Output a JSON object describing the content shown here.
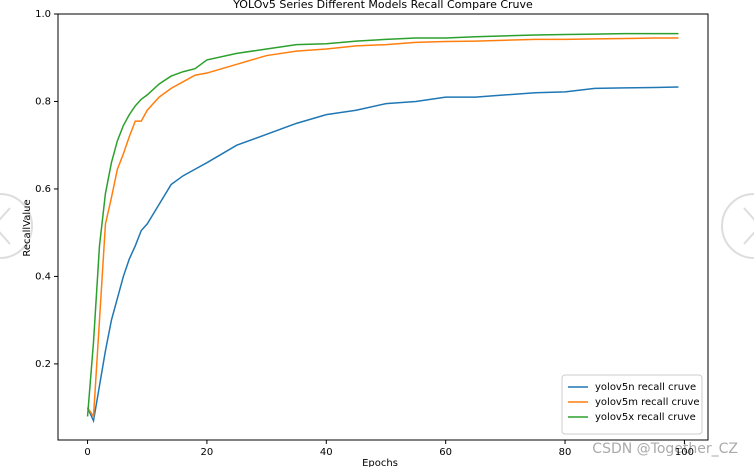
{
  "chart_data": {
    "type": "line",
    "title": "YOLOv5 Series Different Models Recall Compare Cruve",
    "x_label": "Epochs",
    "y_label": "RecallValue",
    "x": [
      0,
      1,
      2,
      3,
      4,
      5,
      6,
      7,
      8,
      9,
      10,
      12,
      14,
      16,
      18,
      20,
      25,
      30,
      35,
      40,
      45,
      50,
      55,
      60,
      65,
      70,
      75,
      80,
      85,
      90,
      95,
      99
    ],
    "series": [
      {
        "name": "yolov5n recall cruve",
        "color": "#1f77b4",
        "values": [
          0.1,
          0.07,
          0.15,
          0.23,
          0.3,
          0.35,
          0.4,
          0.44,
          0.47,
          0.505,
          0.52,
          0.565,
          0.61,
          0.63,
          0.645,
          0.66,
          0.7,
          0.725,
          0.75,
          0.77,
          0.78,
          0.795,
          0.8,
          0.81,
          0.81,
          0.815,
          0.82,
          0.822,
          0.83,
          0.831,
          0.832,
          0.833
        ]
      },
      {
        "name": "yolov5m recall cruve",
        "color": "#ff7f0e",
        "values": [
          0.1,
          0.08,
          0.3,
          0.52,
          0.58,
          0.645,
          0.68,
          0.72,
          0.755,
          0.755,
          0.78,
          0.81,
          0.83,
          0.845,
          0.86,
          0.865,
          0.885,
          0.905,
          0.915,
          0.92,
          0.927,
          0.93,
          0.935,
          0.937,
          0.938,
          0.94,
          0.942,
          0.942,
          0.943,
          0.944,
          0.945,
          0.945
        ]
      },
      {
        "name": "yolov5x recall cruve",
        "color": "#2ca02c",
        "values": [
          0.08,
          0.25,
          0.47,
          0.59,
          0.66,
          0.71,
          0.745,
          0.77,
          0.79,
          0.805,
          0.815,
          0.84,
          0.858,
          0.868,
          0.875,
          0.895,
          0.91,
          0.92,
          0.93,
          0.932,
          0.938,
          0.942,
          0.945,
          0.945,
          0.948,
          0.95,
          0.952,
          0.953,
          0.954,
          0.955,
          0.955,
          0.955
        ]
      }
    ],
    "xlim": [
      -4.95,
      103.95
    ],
    "ylim": [
      0.026,
      1.0
    ],
    "xticks": [
      0,
      20,
      40,
      60,
      80,
      100
    ],
    "yticks": [
      0.2,
      0.4,
      0.6,
      0.8,
      {
        "value": 1,
        "label": "1.0"
      }
    ],
    "legend": "lower right"
  },
  "watermark": "CSDN @Together_CZ"
}
